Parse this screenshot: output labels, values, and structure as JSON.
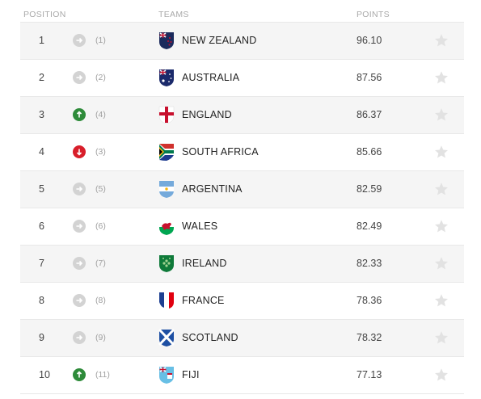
{
  "header": {
    "position": "POSITION",
    "teams": "TEAMS",
    "points": "POINTS"
  },
  "colors": {
    "up": "#2e8b3a",
    "down": "#d81e2a",
    "same": "#d3d3d3",
    "star": "#e2e2e2"
  },
  "rows": [
    {
      "position": "1",
      "movement": "same",
      "previous": "(1)",
      "team": "NEW ZEALAND",
      "flag": "new-zealand-flag-icon",
      "points": "96.10"
    },
    {
      "position": "2",
      "movement": "same",
      "previous": "(2)",
      "team": "AUSTRALIA",
      "flag": "australia-flag-icon",
      "points": "87.56"
    },
    {
      "position": "3",
      "movement": "up",
      "previous": "(4)",
      "team": "ENGLAND",
      "flag": "england-flag-icon",
      "points": "86.37"
    },
    {
      "position": "4",
      "movement": "down",
      "previous": "(3)",
      "team": "SOUTH AFRICA",
      "flag": "south-africa-flag-icon",
      "points": "85.66"
    },
    {
      "position": "5",
      "movement": "same",
      "previous": "(5)",
      "team": "ARGENTINA",
      "flag": "argentina-flag-icon",
      "points": "82.59"
    },
    {
      "position": "6",
      "movement": "same",
      "previous": "(6)",
      "team": "WALES",
      "flag": "wales-flag-icon",
      "points": "82.49"
    },
    {
      "position": "7",
      "movement": "same",
      "previous": "(7)",
      "team": "IRELAND",
      "flag": "ireland-flag-icon",
      "points": "82.33"
    },
    {
      "position": "8",
      "movement": "same",
      "previous": "(8)",
      "team": "FRANCE",
      "flag": "france-flag-icon",
      "points": "78.36"
    },
    {
      "position": "9",
      "movement": "same",
      "previous": "(9)",
      "team": "SCOTLAND",
      "flag": "scotland-flag-icon",
      "points": "78.32"
    },
    {
      "position": "10",
      "movement": "up",
      "previous": "(11)",
      "team": "FIJI",
      "flag": "fiji-flag-icon",
      "points": "77.13"
    }
  ]
}
